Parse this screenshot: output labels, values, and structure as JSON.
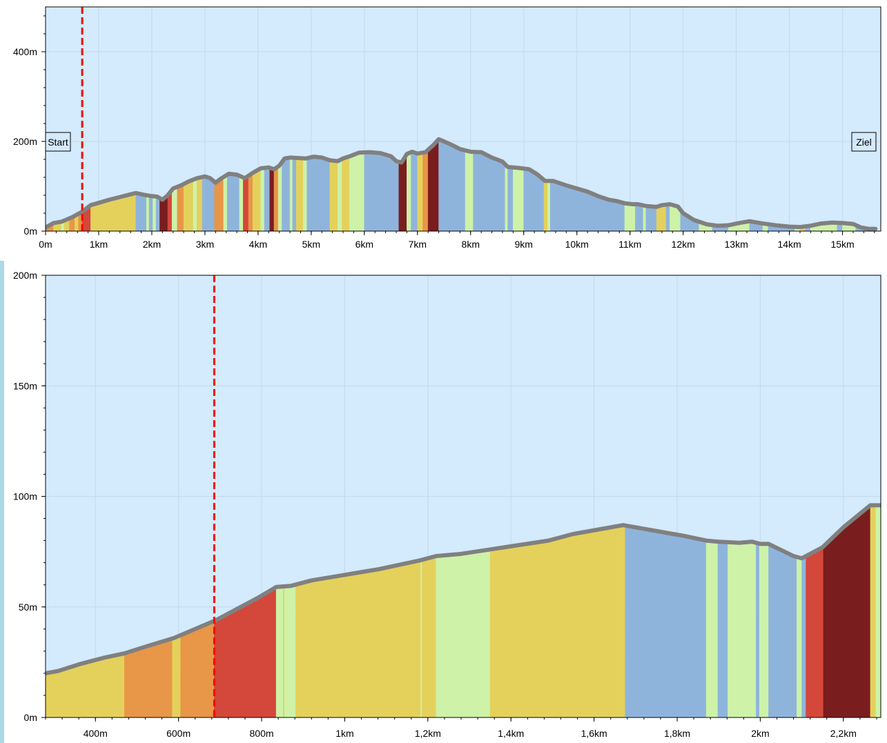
{
  "colors": {
    "plot_background": "#d4eafd",
    "profile_line": "#808080",
    "position_marker": "#ff0000",
    "gradient_legend": {
      "descent": "#8fb4dc",
      "flat": "#cdf2a8",
      "gentle_climb": "#e4d15c",
      "moderate_climb": "#e89647",
      "steep_climb": "#d4473b",
      "very_steep_climb": "#7a1d1e"
    }
  },
  "chart_data": [
    {
      "type": "area",
      "name": "overview",
      "x_unit": "km",
      "y_unit": "m",
      "xlim": [
        0,
        15.72
      ],
      "ylim": [
        0,
        500
      ],
      "x_ticks": [
        {
          "value": 0,
          "label": "0m"
        },
        {
          "value": 1,
          "label": "1km"
        },
        {
          "value": 2,
          "label": "2km"
        },
        {
          "value": 3,
          "label": "3km"
        },
        {
          "value": 4,
          "label": "4km"
        },
        {
          "value": 5,
          "label": "5km"
        },
        {
          "value": 6,
          "label": "6km"
        },
        {
          "value": 7,
          "label": "7km"
        },
        {
          "value": 8,
          "label": "8km"
        },
        {
          "value": 9,
          "label": "9km"
        },
        {
          "value": 10,
          "label": "10km"
        },
        {
          "value": 11,
          "label": "11km"
        },
        {
          "value": 12,
          "label": "12km"
        },
        {
          "value": 13,
          "label": "13km"
        },
        {
          "value": 14,
          "label": "14km"
        },
        {
          "value": 15,
          "label": "15km"
        }
      ],
      "y_ticks": [
        {
          "value": 0,
          "label": "0m"
        },
        {
          "value": 200,
          "label": "200m"
        },
        {
          "value": 400,
          "label": "400m"
        }
      ],
      "minor_y_step": 40,
      "minor_x_step": 0.2,
      "grid": true,
      "position_marker_km": 0.69,
      "start_label": "Start",
      "end_label": "Ziel",
      "profile": [
        [
          0,
          8
        ],
        [
          0.15,
          18
        ],
        [
          0.3,
          21
        ],
        [
          0.5,
          31
        ],
        [
          0.7,
          44
        ],
        [
          0.85,
          58
        ],
        [
          1,
          63
        ],
        [
          1.2,
          70
        ],
        [
          1.4,
          76
        ],
        [
          1.6,
          82
        ],
        [
          1.7,
          85
        ],
        [
          1.85,
          81
        ],
        [
          2,
          78
        ],
        [
          2.1,
          77
        ],
        [
          2.2,
          70
        ],
        [
          2.3,
          80
        ],
        [
          2.4,
          95
        ],
        [
          2.55,
          102
        ],
        [
          2.7,
          111
        ],
        [
          2.85,
          118
        ],
        [
          3,
          122
        ],
        [
          3.1,
          118
        ],
        [
          3.2,
          108
        ],
        [
          3.3,
          117
        ],
        [
          3.45,
          128
        ],
        [
          3.6,
          126
        ],
        [
          3.75,
          118
        ],
        [
          3.9,
          130
        ],
        [
          4.05,
          140
        ],
        [
          4.2,
          142
        ],
        [
          4.3,
          138
        ],
        [
          4.4,
          146
        ],
        [
          4.5,
          162
        ],
        [
          4.6,
          164
        ],
        [
          4.75,
          163
        ],
        [
          4.9,
          162
        ],
        [
          5.05,
          166
        ],
        [
          5.2,
          164
        ],
        [
          5.35,
          158
        ],
        [
          5.5,
          156
        ],
        [
          5.6,
          162
        ],
        [
          5.75,
          168
        ],
        [
          5.9,
          175
        ],
        [
          6.1,
          176
        ],
        [
          6.3,
          174
        ],
        [
          6.5,
          167
        ],
        [
          6.6,
          156
        ],
        [
          6.7,
          153
        ],
        [
          6.8,
          172
        ],
        [
          6.9,
          177
        ],
        [
          7,
          173
        ],
        [
          7.15,
          176
        ],
        [
          7.3,
          192
        ],
        [
          7.4,
          205
        ],
        [
          7.5,
          200
        ],
        [
          7.65,
          192
        ],
        [
          7.8,
          183
        ],
        [
          8,
          177
        ],
        [
          8.2,
          176
        ],
        [
          8.4,
          164
        ],
        [
          8.6,
          155
        ],
        [
          8.7,
          143
        ],
        [
          8.9,
          141
        ],
        [
          9.1,
          138
        ],
        [
          9.25,
          127
        ],
        [
          9.4,
          112
        ],
        [
          9.55,
          112
        ],
        [
          9.8,
          102
        ],
        [
          10,
          95
        ],
        [
          10.2,
          88
        ],
        [
          10.4,
          78
        ],
        [
          10.6,
          70
        ],
        [
          10.75,
          67
        ],
        [
          10.9,
          62
        ],
        [
          11.05,
          60
        ],
        [
          11.15,
          60
        ],
        [
          11.3,
          56
        ],
        [
          11.5,
          54
        ],
        [
          11.6,
          58
        ],
        [
          11.75,
          60
        ],
        [
          11.9,
          55
        ],
        [
          12,
          40
        ],
        [
          12.2,
          25
        ],
        [
          12.45,
          15
        ],
        [
          12.65,
          12
        ],
        [
          12.85,
          13
        ],
        [
          13.05,
          18
        ],
        [
          13.25,
          22
        ],
        [
          13.5,
          17
        ],
        [
          13.75,
          13
        ],
        [
          14,
          10
        ],
        [
          14.2,
          9
        ],
        [
          14.4,
          12
        ],
        [
          14.6,
          17
        ],
        [
          14.8,
          19
        ],
        [
          15,
          18
        ],
        [
          15.2,
          16
        ],
        [
          15.35,
          8
        ],
        [
          15.5,
          5
        ],
        [
          15.62,
          5
        ]
      ],
      "bands": [
        [
          "moderate_climb",
          0.0,
          0.15
        ],
        [
          "gentle_climb",
          0.15,
          0.3
        ],
        [
          "flat",
          0.3,
          0.35
        ],
        [
          "gentle_climb",
          0.35,
          0.45
        ],
        [
          "moderate_climb",
          0.45,
          0.55
        ],
        [
          "gentle_climb",
          0.55,
          0.62
        ],
        [
          "moderate_climb",
          0.62,
          0.69
        ],
        [
          "steep_climb",
          0.69,
          0.85
        ],
        [
          "gentle_climb",
          0.85,
          1.5
        ],
        [
          "gentle_climb",
          1.5,
          1.7
        ],
        [
          "descent",
          1.7,
          1.9
        ],
        [
          "flat",
          1.9,
          1.95
        ],
        [
          "descent",
          1.95,
          2.02
        ],
        [
          "flat",
          2.02,
          2.08
        ],
        [
          "descent",
          2.08,
          2.15
        ],
        [
          "very_steep_climb",
          2.15,
          2.3
        ],
        [
          "steep_climb",
          2.3,
          2.38
        ],
        [
          "flat",
          2.38,
          2.48
        ],
        [
          "moderate_climb",
          2.48,
          2.6
        ],
        [
          "gentle_climb",
          2.6,
          2.78
        ],
        [
          "flat",
          2.78,
          2.85
        ],
        [
          "gentle_climb",
          2.85,
          2.95
        ],
        [
          "descent",
          2.95,
          3.18
        ],
        [
          "moderate_climb",
          3.18,
          3.35
        ],
        [
          "flat",
          3.35,
          3.42
        ],
        [
          "descent",
          3.42,
          3.65
        ],
        [
          "flat",
          3.65,
          3.72
        ],
        [
          "steep_climb",
          3.72,
          3.82
        ],
        [
          "moderate_climb",
          3.82,
          3.9
        ],
        [
          "gentle_climb",
          3.9,
          4.05
        ],
        [
          "flat",
          4.05,
          4.12
        ],
        [
          "descent",
          4.12,
          4.22
        ],
        [
          "very_steep_climb",
          4.22,
          4.3
        ],
        [
          "moderate_climb",
          4.3,
          4.38
        ],
        [
          "flat",
          4.38,
          4.45
        ],
        [
          "descent",
          4.45,
          4.6
        ],
        [
          "flat",
          4.6,
          4.65
        ],
        [
          "descent",
          4.65,
          4.72
        ],
        [
          "gentle_climb",
          4.72,
          4.85
        ],
        [
          "flat",
          4.85,
          4.92
        ],
        [
          "descent",
          4.92,
          5.35
        ],
        [
          "gentle_climb",
          5.35,
          5.5
        ],
        [
          "flat",
          5.5,
          5.58
        ],
        [
          "gentle_climb",
          5.58,
          5.72
        ],
        [
          "flat",
          5.72,
          6.0
        ],
        [
          "descent",
          6.0,
          6.65
        ],
        [
          "very_steep_climb",
          6.65,
          6.8
        ],
        [
          "flat",
          6.8,
          6.88
        ],
        [
          "descent",
          6.88,
          7.0
        ],
        [
          "gentle_climb",
          7.0,
          7.1
        ],
        [
          "moderate_climb",
          7.1,
          7.2
        ],
        [
          "very_steep_climb",
          7.2,
          7.4
        ],
        [
          "descent",
          7.4,
          7.9
        ],
        [
          "flat",
          7.9,
          8.05
        ],
        [
          "descent",
          8.05,
          8.65
        ],
        [
          "flat",
          8.65,
          8.7
        ],
        [
          "descent",
          8.7,
          8.8
        ],
        [
          "flat",
          8.8,
          9.0
        ],
        [
          "descent",
          9.0,
          9.38
        ],
        [
          "gentle_climb",
          9.38,
          9.45
        ],
        [
          "flat",
          9.45,
          9.5
        ],
        [
          "descent",
          9.5,
          10.9
        ],
        [
          "flat",
          10.9,
          11.1
        ],
        [
          "descent",
          11.1,
          11.25
        ],
        [
          "flat",
          11.25,
          11.3
        ],
        [
          "descent",
          11.3,
          11.5
        ],
        [
          "gentle_climb",
          11.5,
          11.68
        ],
        [
          "descent",
          11.68,
          11.75
        ],
        [
          "flat",
          11.75,
          11.95
        ],
        [
          "descent",
          11.95,
          12.3
        ],
        [
          "flat",
          12.3,
          12.55
        ],
        [
          "descent",
          12.55,
          12.85
        ],
        [
          "flat",
          12.85,
          13.25
        ],
        [
          "descent",
          13.25,
          13.5
        ],
        [
          "flat",
          13.5,
          13.6
        ],
        [
          "descent",
          13.6,
          14.1
        ],
        [
          "flat",
          14.1,
          14.2
        ],
        [
          "gentle_climb",
          14.2,
          14.3
        ],
        [
          "descent",
          14.3,
          14.4
        ],
        [
          "flat",
          14.4,
          14.9
        ],
        [
          "descent",
          14.9,
          15.0
        ],
        [
          "flat",
          15.0,
          15.25
        ],
        [
          "descent",
          15.25,
          15.62
        ]
      ]
    },
    {
      "type": "area",
      "name": "detail",
      "x_unit": "m",
      "y_unit": "m",
      "xlim": [
        280,
        2290
      ],
      "ylim": [
        0,
        200
      ],
      "x_ticks": [
        {
          "value": 400,
          "label": "400m"
        },
        {
          "value": 600,
          "label": "600m"
        },
        {
          "value": 800,
          "label": "800m"
        },
        {
          "value": 1000,
          "label": "1km"
        },
        {
          "value": 1200,
          "label": "1,2km"
        },
        {
          "value": 1400,
          "label": "1,4km"
        },
        {
          "value": 1600,
          "label": "1,6km"
        },
        {
          "value": 1800,
          "label": "1,8km"
        },
        {
          "value": 2000,
          "label": "2km"
        },
        {
          "value": 2200,
          "label": "2,2km"
        }
      ],
      "y_ticks": [
        {
          "value": 0,
          "label": "0m"
        },
        {
          "value": 50,
          "label": "50m"
        },
        {
          "value": 100,
          "label": "100m"
        },
        {
          "value": 150,
          "label": "150m"
        },
        {
          "value": 200,
          "label": "200m"
        }
      ],
      "minor_y_step": 10,
      "minor_x_step": 40,
      "grid": true,
      "position_marker_m": 686,
      "profile": [
        [
          280,
          20
        ],
        [
          310,
          21
        ],
        [
          360,
          24
        ],
        [
          420,
          27
        ],
        [
          470,
          29
        ],
        [
          520,
          32
        ],
        [
          590,
          36
        ],
        [
          640,
          40
        ],
        [
          690,
          44
        ],
        [
          740,
          49
        ],
        [
          790,
          54
        ],
        [
          835,
          59
        ],
        [
          870,
          59.5
        ],
        [
          920,
          62
        ],
        [
          1000,
          64.5
        ],
        [
          1080,
          67
        ],
        [
          1180,
          71
        ],
        [
          1220,
          73
        ],
        [
          1280,
          74
        ],
        [
          1350,
          76
        ],
        [
          1420,
          78
        ],
        [
          1490,
          80
        ],
        [
          1550,
          83
        ],
        [
          1670,
          87
        ],
        [
          1790,
          83
        ],
        [
          1820,
          82
        ],
        [
          1870,
          80
        ],
        [
          1900,
          79.5
        ],
        [
          1950,
          79
        ],
        [
          1980,
          79.5
        ],
        [
          2000,
          78.5
        ],
        [
          2020,
          78.5
        ],
        [
          2080,
          73
        ],
        [
          2100,
          72
        ],
        [
          2150,
          77
        ],
        [
          2200,
          86
        ],
        [
          2265,
          96
        ],
        [
          2290,
          96
        ]
      ],
      "bands": [
        [
          "gentle_climb",
          280,
          470
        ],
        [
          "moderate_climb",
          470,
          585
        ],
        [
          "gentle_climb",
          585,
          605
        ],
        [
          "moderate_climb",
          605,
          686
        ],
        [
          "steep_climb",
          686,
          835
        ],
        [
          "flat",
          835,
          852
        ],
        [
          "gentle_climb",
          852,
          855
        ],
        [
          "flat",
          855,
          882
        ],
        [
          "gentle_climb",
          882,
          1183
        ],
        [
          "flat",
          1183,
          1186
        ],
        [
          "gentle_climb",
          1186,
          1220
        ],
        [
          "flat",
          1220,
          1350
        ],
        [
          "gentle_climb",
          1350,
          1675
        ],
        [
          "descent",
          1675,
          1870
        ],
        [
          "flat",
          1870,
          1898
        ],
        [
          "descent",
          1898,
          1922
        ],
        [
          "flat",
          1922,
          1990
        ],
        [
          "descent",
          1990,
          1998
        ],
        [
          "flat",
          1998,
          2020
        ],
        [
          "descent",
          2020,
          2088
        ],
        [
          "flat",
          2088,
          2100
        ],
        [
          "descent",
          2100,
          2110
        ],
        [
          "steep_climb",
          2110,
          2152
        ],
        [
          "very_steep_climb",
          2152,
          2265
        ],
        [
          "gentle_climb",
          2265,
          2278
        ],
        [
          "flat",
          2278,
          2290
        ]
      ]
    }
  ]
}
